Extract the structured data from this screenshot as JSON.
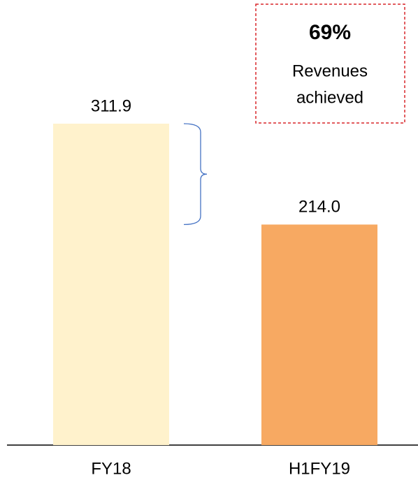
{
  "chart_data": {
    "type": "bar",
    "categories": [
      "FY18",
      "H1FY19"
    ],
    "values": [
      311.9,
      214.0
    ],
    "value_labels": [
      "311.9",
      "214.0"
    ],
    "colors": [
      "#fff2cc",
      "#f7a962"
    ],
    "annotation": {
      "headline": "69%",
      "lines": [
        "Revenues",
        "achieved"
      ]
    }
  }
}
